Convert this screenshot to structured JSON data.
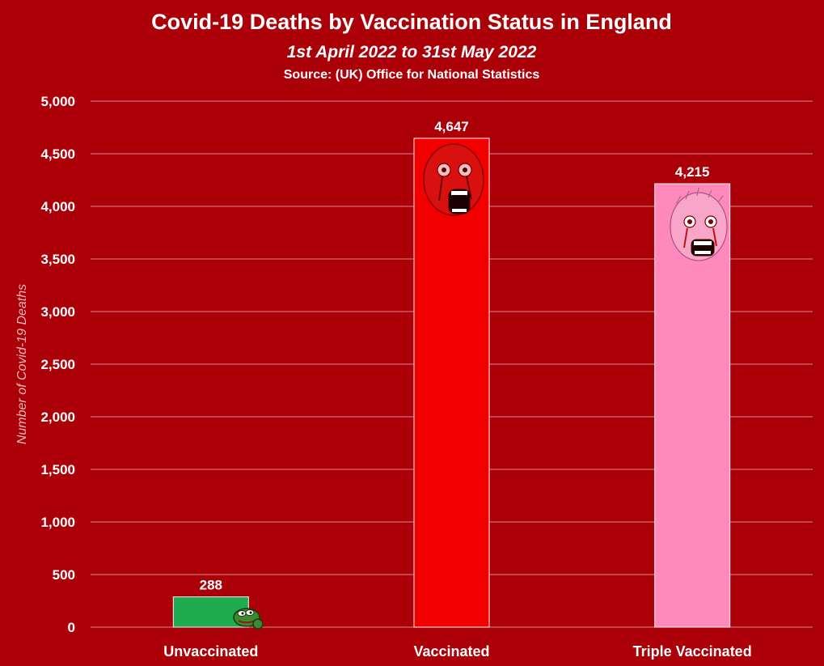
{
  "chart_data": {
    "type": "bar",
    "title": "Covid-19 Deaths by Vaccination Status in England",
    "subtitle": "1st April 2022 to 31st May 2022",
    "source": "Source: (UK) Office for National Statistics",
    "xlabel": "",
    "ylabel": "Number of Covid-19 Deaths",
    "categories": [
      "Unvaccinated",
      "Vaccinated",
      "Triple Vaccinated"
    ],
    "values": [
      288,
      4647,
      4215
    ],
    "data_labels": [
      "288",
      "4,647",
      "4,215"
    ],
    "bar_colors": [
      "#1fab4f",
      "#f20000",
      "#ff88bd"
    ],
    "ylim": [
      0,
      5000
    ],
    "yticks": [
      0,
      500,
      1000,
      1500,
      2000,
      2500,
      3000,
      3500,
      4000,
      4500,
      5000
    ],
    "ytick_labels": [
      "0",
      "500",
      "1,000",
      "1,500",
      "2,000",
      "2,500",
      "3,000",
      "3,500",
      "4,000",
      "4,500",
      "5,000"
    ],
    "grid": true,
    "legend": "none",
    "background_color": "#ac0009",
    "gridline_color": "#d9878a",
    "decorations": [
      "pepe-frog-icon",
      "screaming-face-icon",
      "screaming-face-icon"
    ]
  }
}
